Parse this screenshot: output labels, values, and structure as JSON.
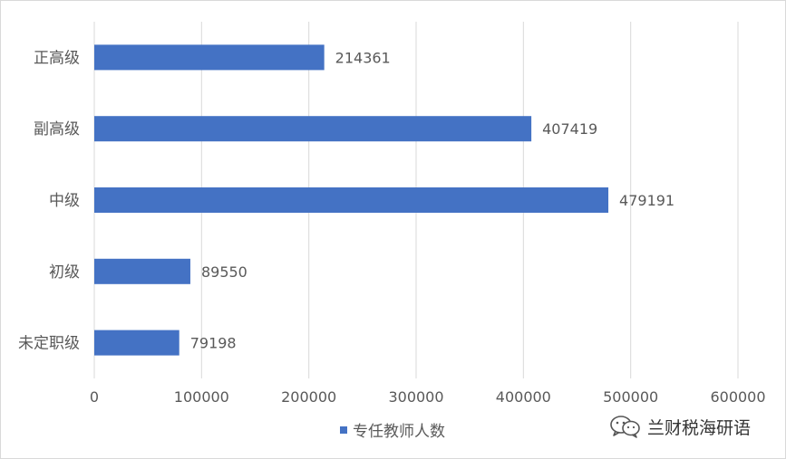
{
  "chart_data": {
    "type": "bar",
    "orientation": "horizontal",
    "categories": [
      "正高级",
      "副高级",
      "中级",
      "初级",
      "未定职级"
    ],
    "series": [
      {
        "name": "专任教师人数",
        "values": [
          214361,
          407419,
          479191,
          89550,
          79198
        ],
        "color": "#4472c4"
      }
    ],
    "xlim": [
      0,
      600000
    ],
    "xticks": [
      0,
      100000,
      200000,
      300000,
      400000,
      500000,
      600000
    ],
    "grid": "vertical",
    "legend": "bottom",
    "data_labels": true
  },
  "watermark": {
    "icon": "wechat-icon",
    "text": "兰财税海研语"
  }
}
